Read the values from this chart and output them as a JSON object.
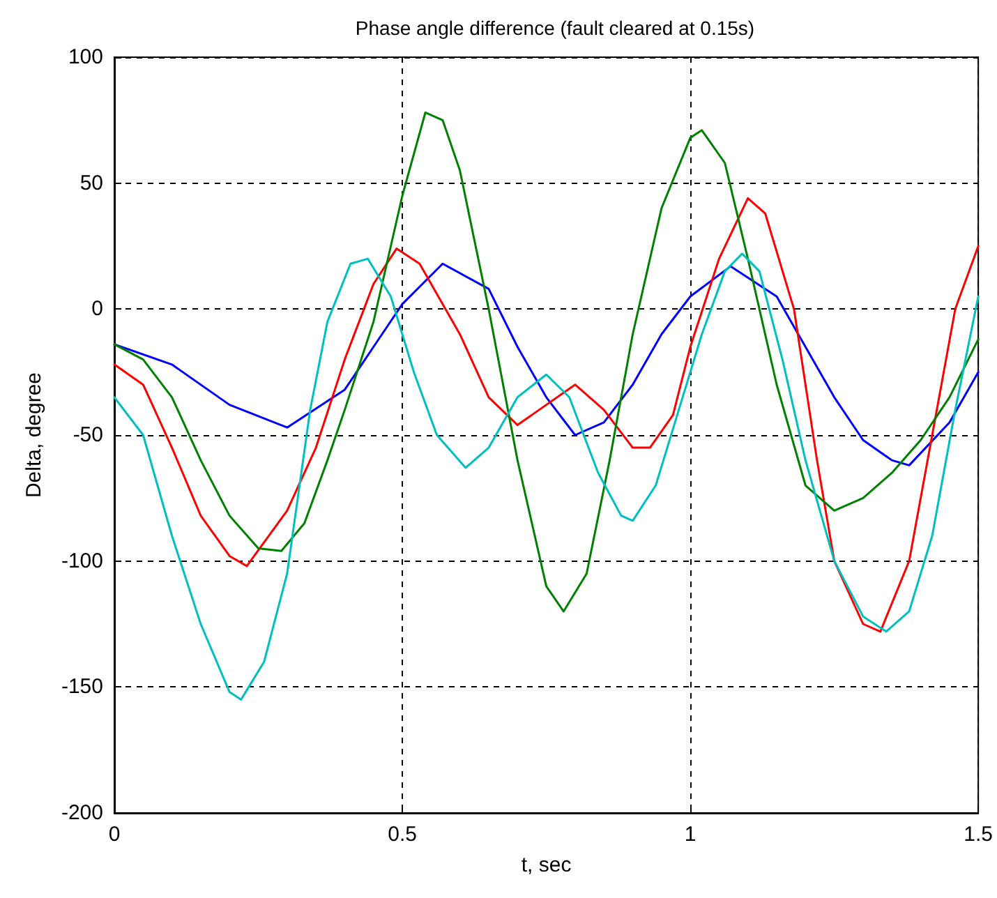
{
  "chart_data": {
    "type": "line",
    "title": "Phase angle difference (fault cleared at 0.15s)",
    "xlabel": "t, sec",
    "ylabel": "Delta, degree",
    "xlim": [
      0,
      1.5
    ],
    "xticks": [
      0,
      0.5,
      1,
      1.5
    ],
    "ylim": [
      -200,
      100
    ],
    "yticks": [
      -200,
      -150,
      -100,
      -50,
      0,
      50,
      100
    ],
    "grid": true,
    "marker": "none",
    "line_style": "solid",
    "series": [
      {
        "color": "#0000ff",
        "x": [
          0,
          0.1,
          0.2,
          0.3,
          0.4,
          0.45,
          0.5,
          0.57,
          0.65,
          0.7,
          0.75,
          0.8,
          0.85,
          0.9,
          0.95,
          1.0,
          1.07,
          1.15,
          1.2,
          1.25,
          1.3,
          1.35,
          1.38,
          1.45,
          1.5
        ],
        "values": [
          -14,
          -22,
          -38,
          -47,
          -32,
          -15,
          2,
          18,
          8,
          -15,
          -35,
          -50,
          -45,
          -30,
          -10,
          5,
          17,
          5,
          -15,
          -35,
          -52,
          -60,
          -62,
          -45,
          -25
        ]
      },
      {
        "color": "#ff0000",
        "x": [
          0,
          0.05,
          0.1,
          0.15,
          0.2,
          0.23,
          0.3,
          0.35,
          0.4,
          0.45,
          0.49,
          0.53,
          0.6,
          0.65,
          0.7,
          0.75,
          0.8,
          0.85,
          0.9,
          0.93,
          0.97,
          1.0,
          1.05,
          1.1,
          1.13,
          1.18,
          1.22,
          1.25,
          1.3,
          1.33,
          1.38,
          1.42,
          1.46,
          1.5
        ],
        "values": [
          -22,
          -30,
          -55,
          -82,
          -98,
          -102,
          -80,
          -55,
          -20,
          10,
          24,
          18,
          -10,
          -35,
          -46,
          -38,
          -30,
          -40,
          -55,
          -55,
          -42,
          -15,
          20,
          44,
          38,
          0,
          -60,
          -100,
          -125,
          -128,
          -100,
          -50,
          0,
          25
        ]
      },
      {
        "color": "#008000",
        "x": [
          0,
          0.05,
          0.1,
          0.15,
          0.2,
          0.25,
          0.29,
          0.33,
          0.37,
          0.4,
          0.45,
          0.5,
          0.54,
          0.57,
          0.6,
          0.65,
          0.7,
          0.75,
          0.78,
          0.82,
          0.86,
          0.9,
          0.95,
          1.0,
          1.02,
          1.06,
          1.1,
          1.15,
          1.2,
          1.25,
          1.3,
          1.35,
          1.4,
          1.45,
          1.5
        ],
        "values": [
          -14,
          -20,
          -35,
          -60,
          -82,
          -95,
          -96,
          -85,
          -60,
          -40,
          -5,
          45,
          78,
          75,
          55,
          0,
          -60,
          -110,
          -120,
          -105,
          -60,
          -10,
          40,
          68,
          71,
          58,
          20,
          -30,
          -70,
          -80,
          -75,
          -65,
          -52,
          -35,
          -12
        ]
      },
      {
        "color": "#00bfbf",
        "x": [
          0,
          0.05,
          0.1,
          0.15,
          0.2,
          0.22,
          0.26,
          0.3,
          0.34,
          0.37,
          0.41,
          0.44,
          0.48,
          0.52,
          0.56,
          0.61,
          0.65,
          0.7,
          0.75,
          0.79,
          0.84,
          0.88,
          0.9,
          0.94,
          0.98,
          1.02,
          1.06,
          1.09,
          1.12,
          1.16,
          1.2,
          1.25,
          1.3,
          1.34,
          1.38,
          1.42,
          1.46,
          1.5
        ],
        "values": [
          -35,
          -50,
          -90,
          -125,
          -152,
          -155,
          -140,
          -105,
          -40,
          -5,
          18,
          20,
          5,
          -25,
          -50,
          -63,
          -55,
          -35,
          -26,
          -35,
          -65,
          -82,
          -84,
          -70,
          -40,
          -10,
          15,
          22,
          15,
          -20,
          -60,
          -100,
          -122,
          -128,
          -120,
          -90,
          -40,
          5
        ]
      }
    ]
  }
}
